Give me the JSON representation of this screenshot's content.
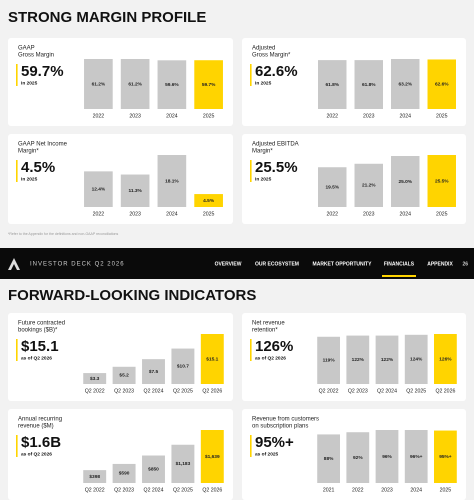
{
  "sections": [
    {
      "title": "STRONG MARGIN PROFILE",
      "footnote": "*Refer to the Appendix for the definitions and non-GAAP reconciliations"
    },
    {
      "title": "FORWARD-LOOKING INDICATORS"
    }
  ],
  "nav": {
    "brand": "INVESTOR DECK Q2 2026",
    "links": [
      "OVERVIEW",
      "OUR ECOSYSTEM",
      "MARKET OPPORTUNITY",
      "FINANCIALS",
      "APPENDIX"
    ],
    "active": "FINANCIALS",
    "page": 26
  },
  "chart_data": [
    {
      "type": "bar",
      "title": [
        "GAAP",
        "Gross Margin"
      ],
      "headline": "59.7%",
      "subhead": "in 2025",
      "categories": [
        "2022",
        "2023",
        "2024",
        "2025"
      ],
      "values": [
        61.2,
        61.2,
        59.6,
        59.7
      ],
      "value_labels": [
        "61.2%",
        "61.2%",
        "59.6%",
        "59.7%"
      ],
      "color": "#c8c8c8",
      "highlight_color": "#ffd400"
    },
    {
      "type": "bar",
      "title": [
        "Adjusted",
        "Gross Margin*"
      ],
      "headline": "62.6%",
      "subhead": "in 2025",
      "categories": [
        "2022",
        "2023",
        "2024",
        "2025"
      ],
      "values": [
        61.8,
        61.8,
        63.2,
        62.6
      ],
      "value_labels": [
        "61.8%",
        "61.8%",
        "63.2%",
        "62.6%"
      ],
      "color": "#c8c8c8",
      "highlight_color": "#ffd400"
    },
    {
      "type": "bar",
      "title": [
        "GAAP Net Income",
        "Margin*"
      ],
      "headline": "4.5%",
      "subhead": "in 2025",
      "categories": [
        "2022",
        "2023",
        "2024",
        "2025"
      ],
      "values": [
        12.4,
        11.3,
        18.1,
        4.5
      ],
      "value_labels": [
        "12.4%",
        "11.3%",
        "18.1%",
        "4.5%"
      ],
      "color": "#c8c8c8",
      "highlight_color": "#ffd400"
    },
    {
      "type": "bar",
      "title": [
        "Adjusted EBITDA",
        "Margin*"
      ],
      "headline": "25.5%",
      "subhead": "in 2025",
      "categories": [
        "2022",
        "2023",
        "2024",
        "2025"
      ],
      "values": [
        19.5,
        21.2,
        25.0,
        25.5
      ],
      "value_labels": [
        "19.5%",
        "21.2%",
        "25.0%",
        "25.5%"
      ],
      "color": "#c8c8c8",
      "highlight_color": "#ffd400"
    },
    {
      "type": "bar",
      "title": [
        "Future contracted",
        "bookings ($B)*"
      ],
      "headline": "$15.1",
      "subhead": "as of Q2 2026",
      "categories": [
        "Q2 2022",
        "Q2 2023",
        "Q2 2024",
        "Q2 2025",
        "Q2 2026"
      ],
      "values": [
        3.3,
        5.2,
        7.5,
        10.7,
        15.1
      ],
      "value_labels": [
        "$3.3",
        "$5.2",
        "$7.5",
        "$10.7",
        "$15.1"
      ],
      "color": "#c8c8c8",
      "highlight_color": "#ffd400"
    },
    {
      "type": "bar",
      "title": [
        "Net revenue",
        "retention*"
      ],
      "headline": "126%",
      "subhead": "as of Q2 2026",
      "categories": [
        "Q2 2022",
        "Q2 2023",
        "Q2 2024",
        "Q2 2025",
        "Q2 2026"
      ],
      "values": [
        119,
        122,
        122,
        124,
        126
      ],
      "value_labels": [
        "119%",
        "122%",
        "122%",
        "124%",
        "126%"
      ],
      "color": "#c8c8c8",
      "highlight_color": "#ffd400"
    },
    {
      "type": "bar",
      "title": [
        "Annual recurring",
        "revenue ($M)"
      ],
      "headline": "$1.6B",
      "subhead": "as of Q2 2026",
      "categories": [
        "Q2 2022",
        "Q2 2023",
        "Q2 2024",
        "Q2 2025",
        "Q2 2026"
      ],
      "values": [
        398,
        590,
        850,
        1183,
        1639
      ],
      "value_labels": [
        "$398",
        "$590",
        "$850",
        "$1,183",
        "$1,639"
      ],
      "color": "#c8c8c8",
      "highlight_color": "#ffd400"
    },
    {
      "type": "bar",
      "title": [
        "Revenue from customers",
        "on subscription plans"
      ],
      "headline": "95%+",
      "subhead": "as of 2025",
      "categories": [
        "2021",
        "2022",
        "2023",
        "2024",
        "2025"
      ],
      "values": [
        88,
        92,
        96,
        96,
        95
      ],
      "value_labels": [
        "88%",
        "92%",
        "96%",
        "96%+",
        "95%+"
      ],
      "color": "#c8c8c8",
      "highlight_color": "#ffd400"
    }
  ]
}
